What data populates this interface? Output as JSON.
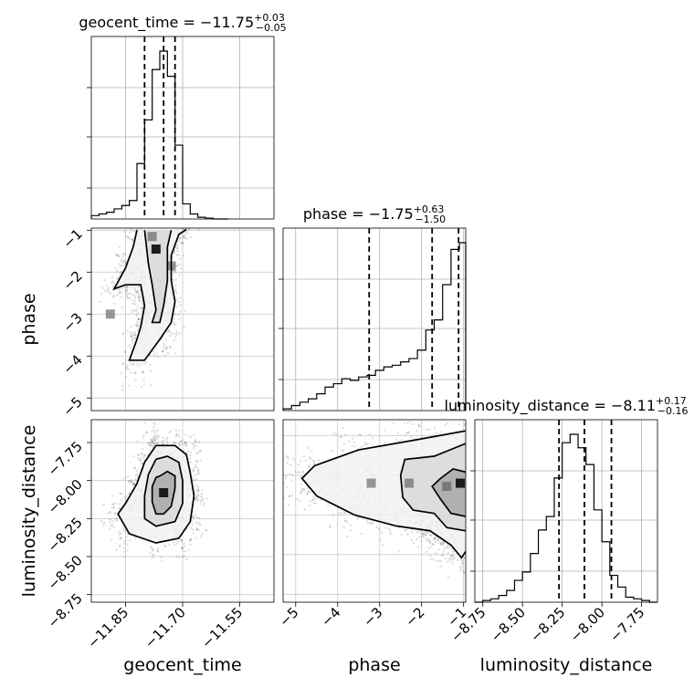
{
  "chart_data": {
    "type": "corner",
    "parameters": [
      "geocent_time",
      "phase",
      "luminosity_distance"
    ],
    "grid": true,
    "marginals": [
      {
        "parameter": "geocent_time",
        "title_main": "geocent_time = −11.75",
        "title_plus": "+0.03",
        "title_minus": "−0.05",
        "median": -11.75,
        "err_plus": 0.03,
        "err_minus": 0.05,
        "quantile_lines": [
          -11.8,
          -11.75,
          -11.72
        ],
        "xlim": [
          -11.94,
          -11.46
        ],
        "xticks": [
          -11.85,
          -11.7,
          -11.55
        ],
        "xtick_labels": [
          "−11.85",
          "−11.70",
          "−11.55"
        ],
        "bin_edges": [
          -11.94,
          -11.92,
          -11.9,
          -11.88,
          -11.86,
          -11.84,
          -11.82,
          -11.8,
          -11.78,
          -11.76,
          -11.74,
          -11.72,
          -11.7,
          -11.68,
          -11.66,
          -11.64,
          -11.62,
          -11.6,
          -11.58
        ],
        "counts": [
          0.02,
          0.03,
          0.04,
          0.06,
          0.08,
          0.11,
          0.33,
          0.59,
          0.89,
          1.0,
          0.85,
          0.44,
          0.09,
          0.03,
          0.01,
          0.005,
          0.0,
          0.0
        ]
      },
      {
        "parameter": "phase",
        "title_main": "phase = −1.75",
        "title_plus": "+0.63",
        "title_minus": "−1.50",
        "median": -1.75,
        "err_plus": 0.63,
        "err_minus": 1.5,
        "quantile_lines": [
          -3.25,
          -1.75,
          -1.12
        ],
        "xlim": [
          -5.3,
          -0.95
        ],
        "xticks": [
          -5,
          -4,
          -3,
          -2,
          -1
        ],
        "xtick_labels": [
          "−5",
          "−4",
          "−3",
          "−2",
          "−1"
        ],
        "bin_edges": [
          -5.3,
          -5.1,
          -4.9,
          -4.7,
          -4.5,
          -4.3,
          -4.1,
          -3.9,
          -3.7,
          -3.5,
          -3.3,
          -3.1,
          -2.9,
          -2.7,
          -2.5,
          -2.3,
          -2.1,
          -1.9,
          -1.7,
          -1.5,
          -1.3,
          -1.1,
          -0.95
        ],
        "counts": [
          0.01,
          0.03,
          0.05,
          0.07,
          0.1,
          0.14,
          0.16,
          0.19,
          0.18,
          0.2,
          0.21,
          0.24,
          0.26,
          0.27,
          0.29,
          0.31,
          0.36,
          0.48,
          0.54,
          0.75,
          0.96,
          1.0
        ]
      },
      {
        "parameter": "luminosity_distance",
        "title_main": "luminosity_distance = −8.11",
        "title_plus": "+0.17",
        "title_minus": "−0.16",
        "median": -8.11,
        "err_plus": 0.17,
        "err_minus": 0.16,
        "quantile_lines": [
          -8.27,
          -8.11,
          -7.94
        ],
        "xlim": [
          -8.8,
          -7.65
        ],
        "xticks": [
          -8.75,
          -8.5,
          -8.25,
          -8.0,
          -7.75
        ],
        "xtick_labels": [
          "−8.75",
          "−8.50",
          "−8.25",
          "−8.00",
          "−7.75"
        ],
        "bin_edges": [
          -8.8,
          -8.75,
          -8.7,
          -8.65,
          -8.6,
          -8.55,
          -8.5,
          -8.45,
          -8.4,
          -8.35,
          -8.3,
          -8.25,
          -8.2,
          -8.15,
          -8.1,
          -8.05,
          -8.0,
          -7.95,
          -7.9,
          -7.85,
          -7.8,
          -7.75,
          -7.7,
          -7.65
        ],
        "counts": [
          0.0,
          0.01,
          0.02,
          0.04,
          0.07,
          0.13,
          0.18,
          0.29,
          0.43,
          0.51,
          0.74,
          0.95,
          1.0,
          0.92,
          0.82,
          0.55,
          0.36,
          0.16,
          0.09,
          0.03,
          0.02,
          0.01,
          0.0
        ]
      }
    ],
    "joint": [
      {
        "x_param": "geocent_time",
        "y_param": "phase",
        "ylim": [
          -5.3,
          -0.95
        ],
        "yticks": [
          -5,
          -4,
          -3,
          -2,
          -1
        ],
        "ytick_labels": [
          "−5",
          "−4",
          "−3",
          "−2",
          "−1"
        ],
        "contours": [
          [
            [
              -11.8,
              -1.0
            ],
            [
              -11.79,
              -1.8
            ],
            [
              -11.78,
              -2.3
            ],
            [
              -11.77,
              -2.9
            ],
            [
              -11.78,
              -3.2
            ],
            [
              -11.76,
              -3.2
            ],
            [
              -11.75,
              -2.8
            ],
            [
              -11.74,
              -2.2
            ],
            [
              -11.74,
              -1.8
            ],
            [
              -11.74,
              -1.4
            ],
            [
              -11.73,
              -1.0
            ]
          ],
          [
            [
              -11.82,
              -1.0
            ],
            [
              -11.83,
              -1.4
            ],
            [
              -11.85,
              -1.9
            ],
            [
              -11.88,
              -2.4
            ],
            [
              -11.85,
              -2.3
            ],
            [
              -11.81,
              -2.3
            ],
            [
              -11.8,
              -2.8
            ],
            [
              -11.81,
              -3.3
            ],
            [
              -11.82,
              -3.6
            ],
            [
              -11.84,
              -4.1
            ],
            [
              -11.8,
              -4.1
            ],
            [
              -11.76,
              -3.6
            ],
            [
              -11.73,
              -3.2
            ],
            [
              -11.72,
              -2.7
            ],
            [
              -11.73,
              -2.2
            ],
            [
              -11.73,
              -1.6
            ],
            [
              -11.71,
              -1.1
            ],
            [
              -11.69,
              -0.98
            ]
          ]
        ],
        "density_peaks": [
          [
            -11.77,
            -1.45
          ],
          [
            -11.78,
            -1.15
          ],
          [
            -11.73,
            -1.85
          ],
          [
            -11.89,
            -3.0
          ]
        ]
      },
      {
        "x_param": "geocent_time",
        "y_param": "luminosity_distance",
        "ylim": [
          -8.8,
          -7.6
        ],
        "yticks": [
          -8.75,
          -8.5,
          -8.25,
          -8.0,
          -7.75
        ],
        "ytick_labels": [
          "−8.75",
          "−8.50",
          "−8.25",
          "−8.00",
          "−7.75"
        ],
        "contours": [
          [
            [
              -11.76,
              -7.97
            ],
            [
              -11.74,
              -7.94
            ],
            [
              -11.72,
              -7.97
            ],
            [
              -11.72,
              -8.05
            ],
            [
              -11.73,
              -8.17
            ],
            [
              -11.75,
              -8.22
            ],
            [
              -11.77,
              -8.22
            ],
            [
              -11.78,
              -8.14
            ],
            [
              -11.78,
              -8.04
            ],
            [
              -11.77,
              -7.98
            ],
            [
              -11.76,
              -7.97
            ]
          ],
          [
            [
              -11.77,
              -7.86
            ],
            [
              -11.74,
              -7.84
            ],
            [
              -11.71,
              -7.88
            ],
            [
              -11.7,
              -8.0
            ],
            [
              -11.7,
              -8.15
            ],
            [
              -11.72,
              -8.27
            ],
            [
              -11.77,
              -8.3
            ],
            [
              -11.8,
              -8.25
            ],
            [
              -11.8,
              -8.1
            ],
            [
              -11.79,
              -7.96
            ],
            [
              -11.77,
              -7.86
            ]
          ],
          [
            [
              -11.77,
              -7.77
            ],
            [
              -11.72,
              -7.77
            ],
            [
              -11.69,
              -7.83
            ],
            [
              -11.68,
              -7.95
            ],
            [
              -11.67,
              -8.1
            ],
            [
              -11.68,
              -8.27
            ],
            [
              -11.71,
              -8.38
            ],
            [
              -11.77,
              -8.41
            ],
            [
              -11.84,
              -8.35
            ],
            [
              -11.87,
              -8.22
            ],
            [
              -11.85,
              -8.15
            ],
            [
              -11.82,
              -8.02
            ],
            [
              -11.8,
              -7.88
            ],
            [
              -11.77,
              -7.77
            ]
          ]
        ],
        "density_peaks": [
          [
            -11.75,
            -8.08
          ]
        ]
      },
      {
        "x_param": "phase",
        "y_param": "luminosity_distance",
        "contours": [
          [
            [
              -0.95,
              -7.98
            ],
            [
              -1.25,
              -7.96
            ],
            [
              -1.55,
              -8.02
            ],
            [
              -1.75,
              -8.07
            ],
            [
              -1.55,
              -8.15
            ],
            [
              -1.3,
              -8.24
            ],
            [
              -0.95,
              -8.26
            ]
          ],
          [
            [
              -0.95,
              -7.8
            ],
            [
              -1.7,
              -7.88
            ],
            [
              -2.4,
              -7.9
            ],
            [
              -2.5,
              -8.0
            ],
            [
              -2.45,
              -8.14
            ],
            [
              -2.2,
              -8.22
            ],
            [
              -1.7,
              -8.24
            ],
            [
              -1.4,
              -8.33
            ],
            [
              -0.95,
              -8.35
            ]
          ],
          [
            [
              -0.95,
              -7.72
            ],
            [
              -2.2,
              -7.78
            ],
            [
              -3.5,
              -7.84
            ],
            [
              -4.55,
              -7.94
            ],
            [
              -4.85,
              -8.02
            ],
            [
              -4.5,
              -8.13
            ],
            [
              -3.6,
              -8.25
            ],
            [
              -2.6,
              -8.32
            ],
            [
              -1.8,
              -8.35
            ],
            [
              -1.3,
              -8.44
            ],
            [
              -1.05,
              -8.52
            ],
            [
              -0.95,
              -8.48
            ]
          ]
        ],
        "density_peaks": [
          [
            -1.08,
            -8.05
          ],
          [
            -1.4,
            -8.07
          ],
          [
            -2.3,
            -8.05
          ],
          [
            -3.2,
            -8.05
          ]
        ]
      }
    ]
  }
}
